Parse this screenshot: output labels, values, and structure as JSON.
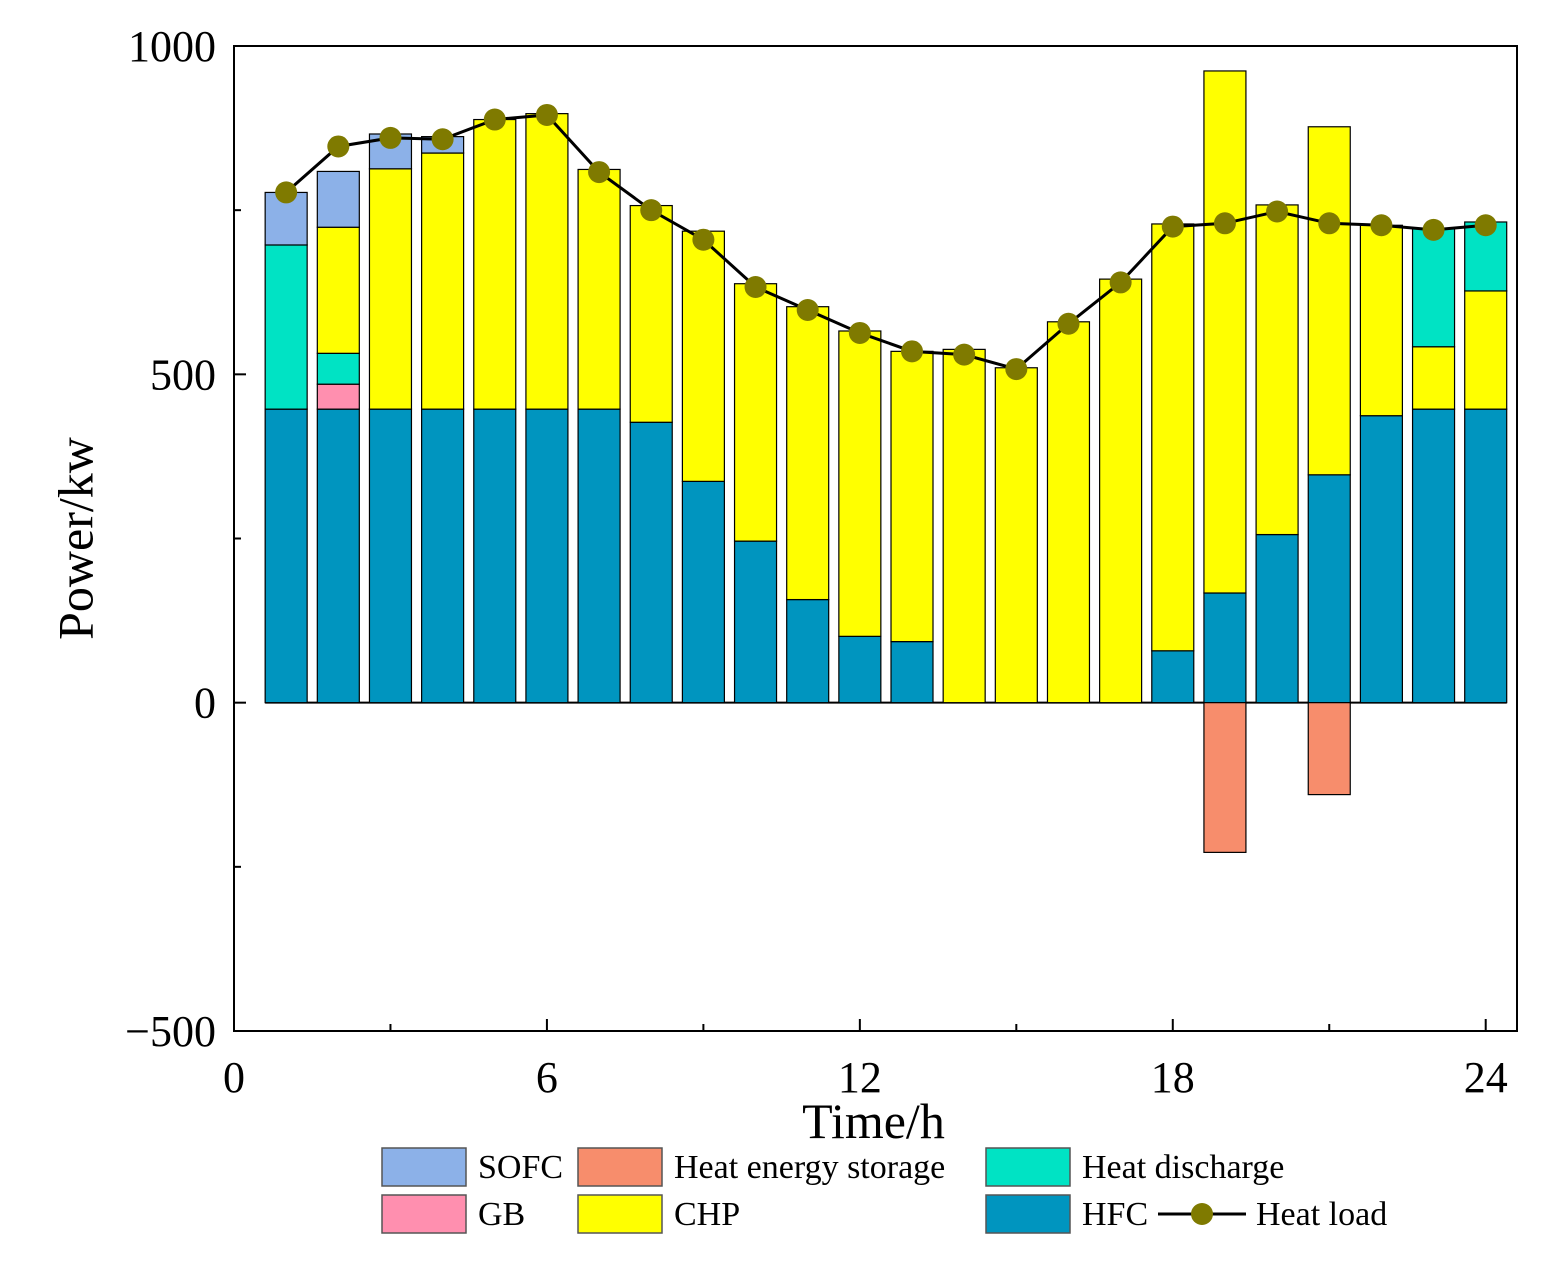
{
  "chart_data": {
    "type": "bar",
    "stacked": true,
    "xlabel": "Time/h",
    "ylabel": "Power/kw",
    "xlim": [
      0,
      24.6
    ],
    "ylim": [
      -500,
      1000
    ],
    "x_ticks": [
      0,
      6,
      12,
      18,
      24
    ],
    "y_ticks": [
      -500,
      0,
      500,
      1000
    ],
    "y_minor_ticks": [
      -250,
      250,
      750
    ],
    "x_minor_ticks": [
      3,
      9,
      15,
      21
    ],
    "hours": [
      1,
      2,
      3,
      4,
      5,
      6,
      7,
      8,
      9,
      10,
      11,
      12,
      13,
      14,
      15,
      16,
      17,
      18,
      19,
      20,
      21,
      22,
      23,
      24
    ],
    "series": [
      {
        "name": "HFC",
        "color": "#0095BF",
        "values": [
          447,
          447,
          447,
          447,
          447,
          447,
          447,
          427,
          337,
          246,
          157,
          101,
          93,
          0,
          0,
          0,
          0,
          79,
          167,
          256,
          347,
          437,
          447,
          447
        ]
      },
      {
        "name": "Heat discharge",
        "color": "#00E3C4",
        "values": [
          250,
          0,
          0,
          0,
          0,
          0,
          0,
          0,
          0,
          0,
          0,
          0,
          0,
          0,
          0,
          0,
          0,
          0,
          0,
          0,
          0,
          0,
          0,
          0
        ]
      },
      {
        "name": "GB",
        "color": "#FF8FAF",
        "values": [
          0,
          38,
          0,
          0,
          0,
          0,
          0,
          0,
          0,
          0,
          0,
          0,
          0,
          0,
          0,
          0,
          0,
          0,
          0,
          0,
          0,
          0,
          0,
          0
        ]
      },
      {
        "name": "Heat discharge",
        "color": "#00E3C4",
        "values": [
          0,
          47,
          0,
          0,
          0,
          0,
          0,
          0,
          0,
          0,
          0,
          0,
          0,
          0,
          0,
          0,
          0,
          0,
          0,
          0,
          0,
          0,
          0,
          0
        ]
      },
      {
        "name": "CHP",
        "color": "#FFFF00",
        "values": [
          0,
          192,
          366,
          390,
          441,
          450,
          365,
          330,
          381,
          392,
          446,
          465,
          442,
          538,
          510,
          580,
          645,
          650,
          795,
          502,
          530,
          290,
          95,
          180
        ]
      },
      {
        "name": "Heat discharge",
        "color": "#00E3C4",
        "values": [
          0,
          0,
          0,
          0,
          0,
          0,
          0,
          0,
          0,
          0,
          0,
          0,
          0,
          0,
          0,
          0,
          0,
          0,
          0,
          0,
          0,
          0,
          180,
          105
        ]
      },
      {
        "name": "SOFC",
        "color": "#8CB1E8",
        "values": [
          80,
          85,
          53,
          25,
          0,
          0,
          0,
          0,
          0,
          0,
          0,
          0,
          0,
          0,
          0,
          0,
          0,
          0,
          0,
          0,
          0,
          0,
          0,
          0
        ]
      },
      {
        "name": "Heat energy storage",
        "color": "#F78D6C",
        "values": [
          0,
          0,
          0,
          0,
          0,
          0,
          0,
          0,
          0,
          0,
          0,
          0,
          0,
          0,
          0,
          0,
          0,
          0,
          -228,
          0,
          -140,
          0,
          0,
          0
        ]
      }
    ],
    "heat_load": {
      "name": "Heat load",
      "color": "#7F7A00",
      "values": [
        777,
        847,
        860,
        858,
        888,
        895,
        808,
        750,
        705,
        633,
        598,
        563,
        535,
        530,
        508,
        577,
        640,
        725,
        730,
        748,
        730,
        727,
        720,
        727
      ]
    },
    "legend": [
      {
        "label": "SOFC",
        "color": "#8CB1E8",
        "kind": "box"
      },
      {
        "label": "Heat energy storage",
        "color": "#F78D6C",
        "kind": "box"
      },
      {
        "label": "Heat discharge",
        "color": "#00E3C4",
        "kind": "box"
      },
      {
        "label": "GB",
        "color": "#FF8FAF",
        "kind": "box"
      },
      {
        "label": "CHP",
        "color": "#FFFF00",
        "kind": "box"
      },
      {
        "label": "HFC",
        "color": "#0095BF",
        "kind": "box"
      },
      {
        "label": "Heat load",
        "color": "#7F7A00",
        "kind": "line-marker"
      }
    ],
    "legend_position": "bottom",
    "grid": false
  }
}
